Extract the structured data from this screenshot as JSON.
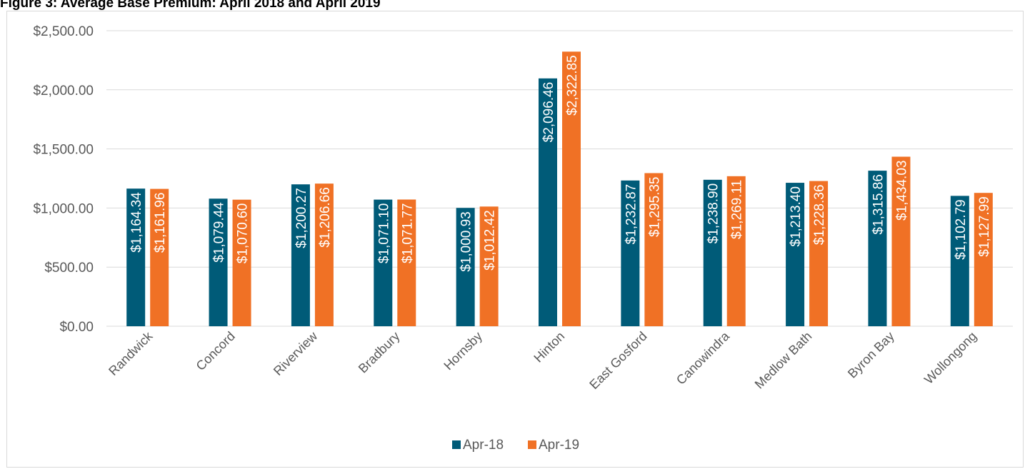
{
  "figure_title": "Figure 3: Average Base Premium: April 2018 and April 2019",
  "chart_data": {
    "type": "bar",
    "categories": [
      "Randwick",
      "Concord",
      "Riverview",
      "Bradbury",
      "Hornsby",
      "Hinton",
      "East Gosford",
      "Canowindra",
      "Medlow Bath",
      "Byron Bay",
      "Wollongong"
    ],
    "series": [
      {
        "name": "Apr-18",
        "color": "#005b78",
        "values": [
          1164.34,
          1079.44,
          1200.27,
          1071.1,
          1000.93,
          2096.46,
          1232.87,
          1238.9,
          1213.4,
          1315.86,
          1102.79
        ],
        "labels": [
          "$1,164.34",
          "$1,079.44",
          "$1,200.27",
          "$1,071.10",
          "$1,000.93",
          "$2,096.46",
          "$1,232.87",
          "$1,238.90",
          "$1,213.40",
          "$1,315.86",
          "$1,102.79"
        ]
      },
      {
        "name": "Apr-19",
        "color": "#f07125",
        "values": [
          1161.96,
          1070.6,
          1206.66,
          1071.77,
          1012.42,
          2322.85,
          1295.35,
          1269.11,
          1228.36,
          1434.03,
          1127.99
        ],
        "labels": [
          "$1,161.96",
          "$1,070.60",
          "$1,206.66",
          "$1,071.77",
          "$1,012.42",
          "$2,322.85",
          "$1,295.35",
          "$1,269.11",
          "$1,228.36",
          "$1,434.03",
          "$1,127.99"
        ]
      }
    ],
    "yticks": [
      0,
      500,
      1000,
      1500,
      2000,
      2500
    ],
    "ytick_labels": [
      "$0.00",
      "$500.00",
      "$1,000.00",
      "$1,500.00",
      "$2,000.00",
      "$2,500.00"
    ],
    "ylim": [
      0,
      2500
    ],
    "grid": true,
    "legend": "bottom"
  }
}
